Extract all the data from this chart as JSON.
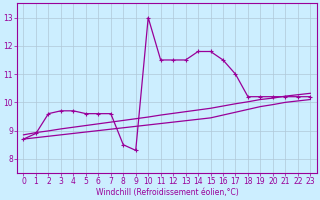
{
  "xlabel": "Windchill (Refroidissement éolien,°C)",
  "background_color": "#cceeff",
  "grid_color": "#b0c8d8",
  "line_color": "#990099",
  "xlim": [
    -0.5,
    23.5
  ],
  "ylim": [
    7.5,
    13.5
  ],
  "yticks": [
    8,
    9,
    10,
    11,
    12,
    13
  ],
  "xticks": [
    0,
    1,
    2,
    3,
    4,
    5,
    6,
    7,
    8,
    9,
    10,
    11,
    12,
    13,
    14,
    15,
    16,
    17,
    18,
    19,
    20,
    21,
    22,
    23
  ],
  "wc_y": [
    8.7,
    8.9,
    9.6,
    9.7,
    9.7,
    9.6,
    9.6,
    9.6,
    8.5,
    8.3,
    13.0,
    11.5,
    11.5,
    11.5,
    11.8,
    11.8,
    11.5,
    11.0,
    10.2,
    10.2,
    10.2,
    10.2,
    10.2,
    10.2
  ],
  "line2_y": [
    8.7,
    8.75,
    8.8,
    8.85,
    8.9,
    8.95,
    9.0,
    9.05,
    9.1,
    9.15,
    9.2,
    9.25,
    9.3,
    9.35,
    9.4,
    9.45,
    9.55,
    9.65,
    9.75,
    9.85,
    9.92,
    10.0,
    10.05,
    10.1
  ],
  "line3_y": [
    8.85,
    8.93,
    8.99,
    9.06,
    9.12,
    9.18,
    9.24,
    9.3,
    9.36,
    9.42,
    9.48,
    9.55,
    9.61,
    9.67,
    9.73,
    9.79,
    9.87,
    9.95,
    10.02,
    10.1,
    10.15,
    10.22,
    10.27,
    10.32
  ],
  "tick_fontsize": 5.5,
  "lw": 0.9,
  "ms": 3
}
